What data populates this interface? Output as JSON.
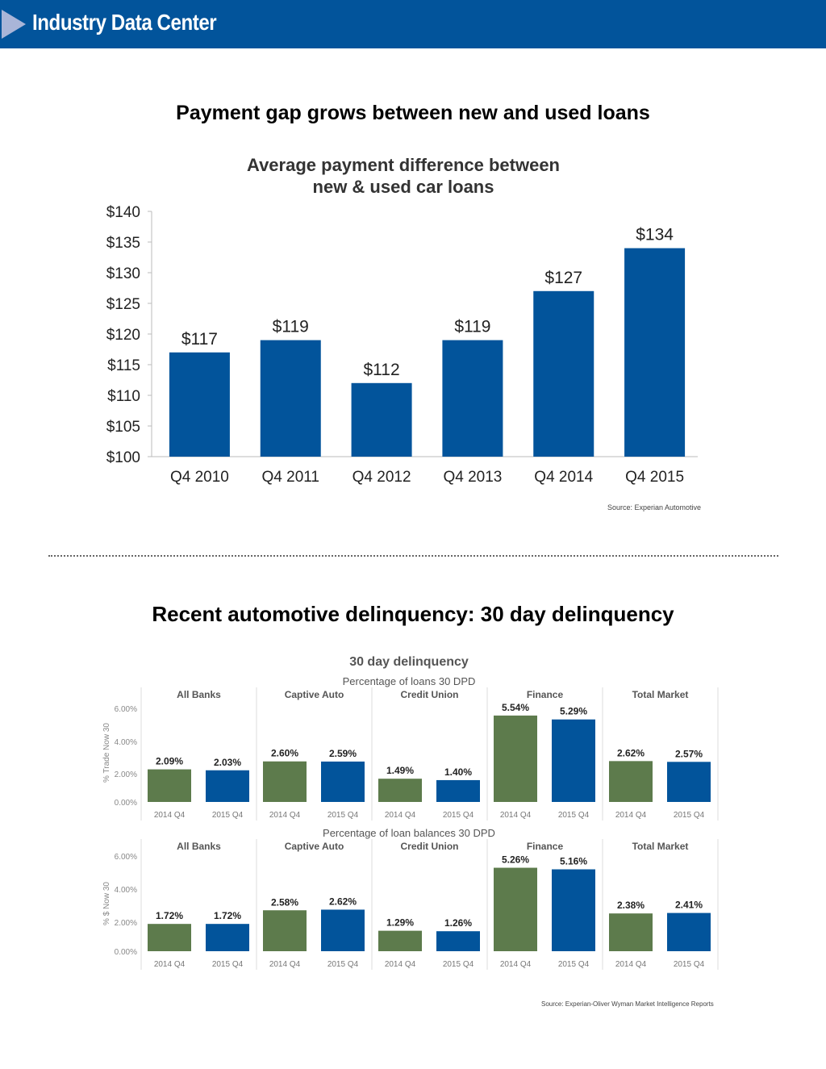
{
  "header": {
    "title": "Industry Data Center"
  },
  "section1": {
    "heading": "Payment gap grows between new and used loans",
    "source": "Source: Experian Automotive"
  },
  "section2": {
    "heading": "Recent automotive delinquency: 30 day delinquency",
    "source": "Source: Experian-Oliver Wyman Market Intelligence Reports"
  },
  "colors": {
    "header_bg": "#02549b",
    "bar_blue": "#02549b",
    "bar_green": "#5d7b4c"
  },
  "chart_data": [
    {
      "type": "bar",
      "title": "Average payment difference between new & used car loans",
      "title_lines": [
        "Average payment difference between",
        "new & used car loans"
      ],
      "categories": [
        "Q4 2010",
        "Q4 2011",
        "Q4 2012",
        "Q4 2013",
        "Q4 2014",
        "Q4 2015"
      ],
      "values": [
        117,
        119,
        112,
        119,
        127,
        134
      ],
      "value_labels": [
        "$117",
        "$119",
        "$112",
        "$119",
        "$127",
        "$134"
      ],
      "xlabel": "",
      "ylabel": "",
      "ylim": [
        100,
        140
      ],
      "yticks": [
        100,
        105,
        110,
        115,
        120,
        125,
        130,
        135,
        140
      ],
      "ytick_labels": [
        "$100",
        "$105",
        "$110",
        "$115",
        "$120",
        "$125",
        "$130",
        "$135",
        "$140"
      ],
      "grid": false
    },
    {
      "type": "bar",
      "title": "30 day delinquency",
      "panels": [
        {
          "subtitle": "Percentage of loans 30 DPD",
          "ylabel": "% Trade Now 30",
          "ylim": [
            0,
            6
          ],
          "ytick_labels": [
            "0.00%",
            "2.00%",
            "4.00%",
            "6.00%"
          ],
          "groups": [
            "All Banks",
            "Captive Auto",
            "Credit Union",
            "Finance",
            "Total Market"
          ],
          "categories": [
            "2014 Q4",
            "2015 Q4"
          ],
          "series": [
            {
              "name": "2014 Q4",
              "values": [
                2.09,
                2.6,
                1.49,
                5.54,
                2.62
              ],
              "labels": [
                "2.09%",
                "2.60%",
                "1.49%",
                "5.54%",
                "2.62%"
              ]
            },
            {
              "name": "2015 Q4",
              "values": [
                2.03,
                2.59,
                1.4,
                5.29,
                2.57
              ],
              "labels": [
                "2.03%",
                "2.59%",
                "1.40%",
                "5.29%",
                "2.57%"
              ]
            }
          ]
        },
        {
          "subtitle": "Percentage of loan balances 30 DPD",
          "ylabel": "% $ Now 30",
          "ylim": [
            0,
            6
          ],
          "ytick_labels": [
            "0.00%",
            "2.00%",
            "4.00%",
            "6.00%"
          ],
          "groups": [
            "All Banks",
            "Captive Auto",
            "Credit Union",
            "Finance",
            "Total Market"
          ],
          "categories": [
            "2014 Q4",
            "2015 Q4"
          ],
          "series": [
            {
              "name": "2014 Q4",
              "values": [
                1.72,
                2.58,
                1.29,
                5.26,
                2.38
              ],
              "labels": [
                "1.72%",
                "2.58%",
                "1.29%",
                "5.26%",
                "2.38%"
              ]
            },
            {
              "name": "2015 Q4",
              "values": [
                1.72,
                2.62,
                1.26,
                5.16,
                2.41
              ],
              "labels": [
                "1.72%",
                "2.62%",
                "1.26%",
                "5.16%",
                "2.41%"
              ]
            }
          ]
        }
      ]
    }
  ]
}
